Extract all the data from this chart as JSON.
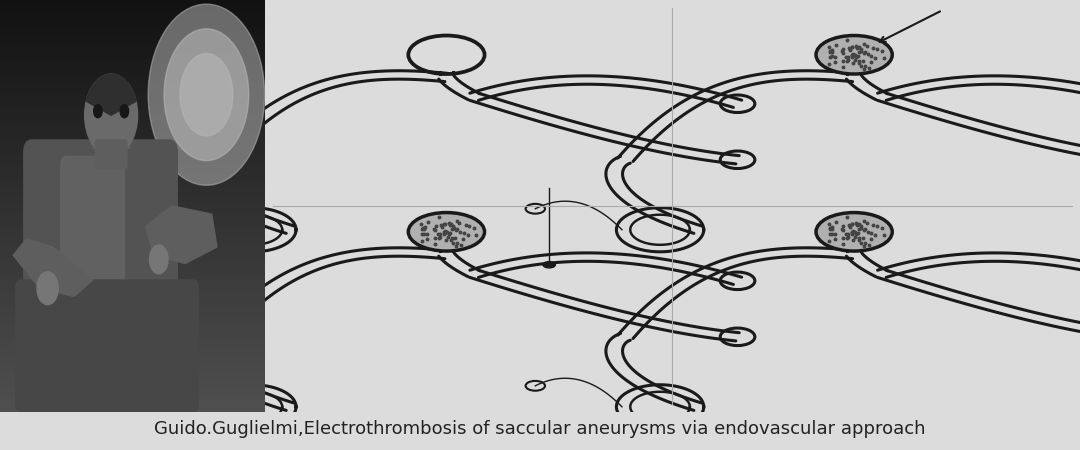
{
  "caption": "Guido.Guglielmi,Electrothrombosis of saccular aneurysms via endovascular approach",
  "caption_fontsize": 13,
  "caption_color": "#222222",
  "bg_color": "#dcdcdc",
  "diagram_bg": "#d0d0d0",
  "fig_width": 10.8,
  "fig_height": 4.5,
  "col": "#1a1a1a",
  "lw_main": 2.2,
  "lw_thin": 1.0
}
